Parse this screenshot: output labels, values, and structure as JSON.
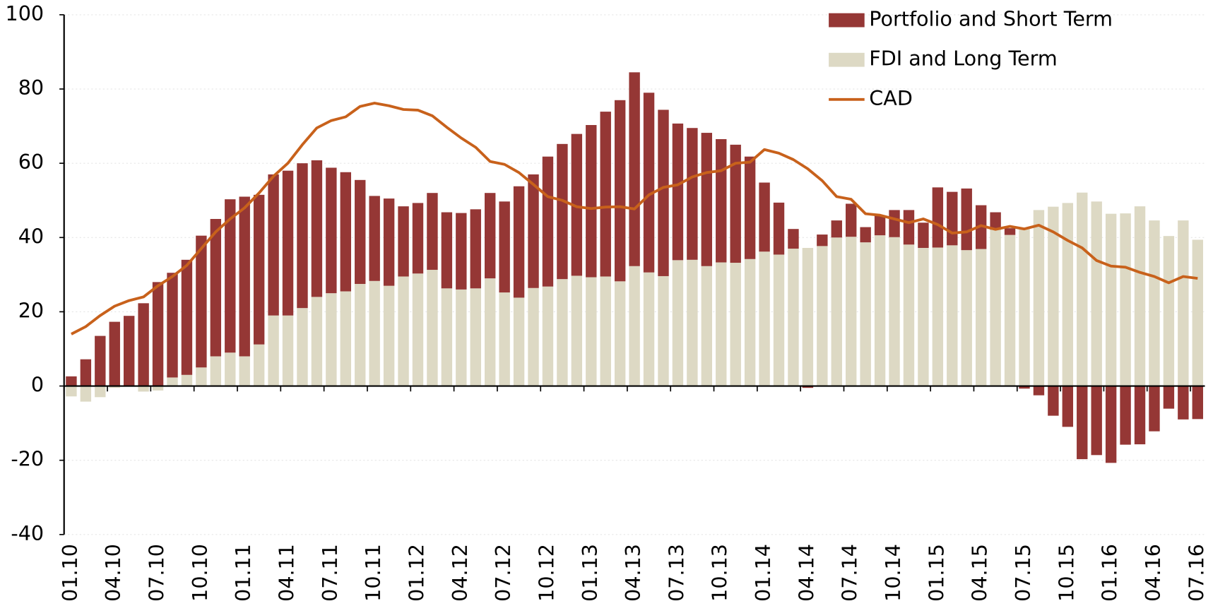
{
  "chart_data": {
    "type": "bar-line",
    "categories": [
      "01.10",
      null,
      null,
      "04.10",
      null,
      null,
      "07.10",
      null,
      null,
      "10.10",
      null,
      null,
      "01.11",
      null,
      null,
      "04.11",
      null,
      null,
      "07.11",
      null,
      null,
      "10.11",
      null,
      null,
      "01.12",
      null,
      null,
      "04.12",
      null,
      null,
      "07.12",
      null,
      null,
      "10.12",
      null,
      null,
      "01.13",
      null,
      null,
      "04.13",
      null,
      null,
      "07.13",
      null,
      null,
      "10.13",
      null,
      null,
      "01.14",
      null,
      null,
      "04.14",
      null,
      null,
      "07.14",
      null,
      null,
      "10.14",
      null,
      null,
      "01.15",
      null,
      null,
      "04.15",
      null,
      null,
      "07.15",
      null,
      null,
      "10.15",
      null,
      null,
      "01.16",
      null,
      null,
      "04.16",
      null,
      null,
      "07.16"
    ],
    "series": [
      {
        "name": "Portfolio and Short Term",
        "color": "#953735",
        "kind": "bar",
        "values": [
          2.6,
          7.2,
          13.5,
          17.3,
          18.9,
          22.3,
          28,
          28.2,
          31,
          35.5,
          37,
          41.3,
          43,
          40.3,
          38,
          39,
          39,
          36.8,
          33.8,
          32.1,
          28,
          22.9,
          23.5,
          18.9,
          19,
          20.7,
          20.5,
          20.6,
          21.3,
          23,
          24.5,
          30,
          30.6,
          35,
          36.4,
          38.2,
          41,
          44.4,
          48.8,
          52.2,
          48.4,
          44.8,
          36.8,
          35.5,
          35.9,
          33.2,
          31.8,
          27.6,
          18.6,
          14,
          5.3,
          -0.5,
          3.1,
          4.6,
          8.9,
          4.1,
          5.3,
          7.3,
          9.3,
          6.8,
          16.2,
          14.4,
          16.6,
          11.8,
          4.7,
          1.8,
          -0.7,
          -2.5,
          -8,
          -11,
          -19.7,
          -18.6,
          -20.7,
          -15.8,
          -15.7,
          -12.2,
          -6.1,
          -9,
          -8.9
        ]
      },
      {
        "name": "FDI and Long Term",
        "color": "#ddd9c4",
        "kind": "bar",
        "values": [
          -2.8,
          -4.2,
          -3,
          -0.5,
          -0.2,
          -1.5,
          -1.2,
          2.3,
          3,
          5,
          8,
          9,
          8,
          11.2,
          19,
          19,
          21,
          24,
          25,
          25.5,
          27.5,
          28.3,
          27,
          29.5,
          30.3,
          31.3,
          26.3,
          26,
          26.3,
          29,
          25.2,
          23.8,
          26.4,
          26.8,
          28.8,
          29.7,
          29.3,
          29.5,
          28.2,
          32.3,
          30.6,
          29.6,
          33.9,
          34,
          32.3,
          33.3,
          33.2,
          34.2,
          36.2,
          35.4,
          37,
          37.2,
          37.7,
          40,
          40.2,
          38.7,
          40.6,
          40.1,
          38.1,
          37.2,
          37.3,
          37.9,
          36.6,
          36.9,
          42.1,
          40.7,
          42.5,
          47.4,
          48.3,
          49.3,
          52.1,
          49.7,
          46.4,
          46.5,
          48.4,
          44.6,
          40.4,
          44.6,
          39.4
        ]
      },
      {
        "name": "CAD",
        "color": "#c8611b",
        "kind": "line",
        "values": [
          14,
          16,
          19,
          21.5,
          23,
          24,
          27,
          29.5,
          32.5,
          37,
          41.5,
          45,
          48,
          52,
          56.5,
          60,
          65,
          69.5,
          71.5,
          72.5,
          75.3,
          76.2,
          75.5,
          74.5,
          74.3,
          72.8,
          69.7,
          66.8,
          64.3,
          60.5,
          59.7,
          57.5,
          54.3,
          51,
          50,
          48.3,
          47.8,
          48.2,
          48.3,
          47.7,
          51.5,
          53.5,
          54.2,
          56.3,
          57.5,
          58,
          60,
          60.3,
          63.7,
          62.7,
          61,
          58.5,
          55.3,
          51,
          50.3,
          46.4,
          46,
          45,
          44,
          45,
          43.5,
          41.2,
          41.5,
          43.2,
          42.2,
          43,
          42.3,
          43.3,
          41.5,
          39.2,
          37.2,
          33.8,
          32.3,
          32,
          30.6,
          29.5,
          27.8,
          29.5,
          29
        ]
      }
    ],
    "ylim": [
      -40,
      100
    ],
    "yticks": [
      -40,
      -20,
      0,
      20,
      40,
      60,
      80,
      100
    ],
    "grid": true,
    "legend": "top-right"
  }
}
